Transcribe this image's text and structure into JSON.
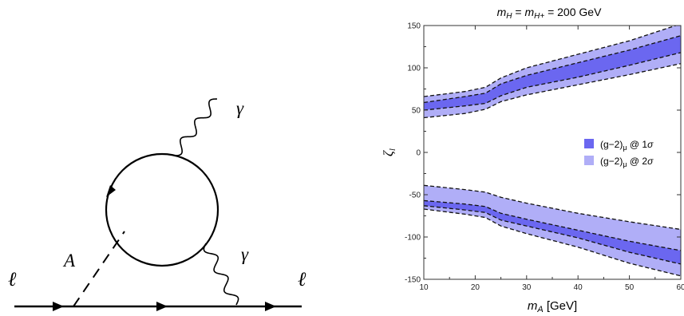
{
  "diagram": {
    "lepton_in_label": "ℓ",
    "lepton_out_label": "ℓ",
    "scalar_label": "A",
    "photon_top_label": "γ",
    "photon_bottom_label": "γ"
  },
  "chart_data": {
    "type": "area",
    "title": "m_H = m_H+ = 200 GeV",
    "xlabel": "m_A [GeV]",
    "ylabel": "ζ_l",
    "xlim": [
      10,
      60
    ],
    "ylim": [
      -150,
      150
    ],
    "xticks": [
      10,
      20,
      30,
      40,
      50,
      60
    ],
    "yticks": [
      -150,
      -100,
      -50,
      0,
      50,
      100,
      150
    ],
    "grid": false,
    "legend_position": "right-middle",
    "colors": {
      "band_1sigma": "#6b67f0",
      "band_2sigma": "#b0aef7"
    },
    "bands": {
      "x": [
        10,
        18,
        22,
        25,
        30,
        40,
        50,
        60
      ],
      "upper_2sigma_top": [
        66,
        72,
        77,
        88,
        100,
        116,
        132,
        152
      ],
      "upper_1sigma_top": [
        59,
        66,
        70,
        81,
        91,
        106,
        121,
        138
      ],
      "upper_1sigma_bottom": [
        50,
        55,
        58,
        67,
        77,
        89,
        103,
        118
      ],
      "upper_2sigma_bottom": [
        41,
        46,
        51,
        60,
        68,
        80,
        92,
        105
      ],
      "lower_2sigma_top": [
        -39,
        -44,
        -47,
        -53,
        -60,
        -72,
        -82,
        -91
      ],
      "lower_1sigma_top": [
        -57,
        -61,
        -64,
        -72,
        -79,
        -92,
        -105,
        -116
      ],
      "lower_1sigma_bottom": [
        -63,
        -68,
        -71,
        -80,
        -87,
        -101,
        -118,
        -132
      ],
      "lower_2sigma_bottom": [
        -67,
        -73,
        -77,
        -87,
        -96,
        -112,
        -131,
        -146
      ]
    },
    "series": [
      {
        "name": "(g−2)μ @ 1σ",
        "color": "#6b67f0"
      },
      {
        "name": "(g−2)μ @ 2σ",
        "color": "#b0aef7"
      }
    ]
  }
}
